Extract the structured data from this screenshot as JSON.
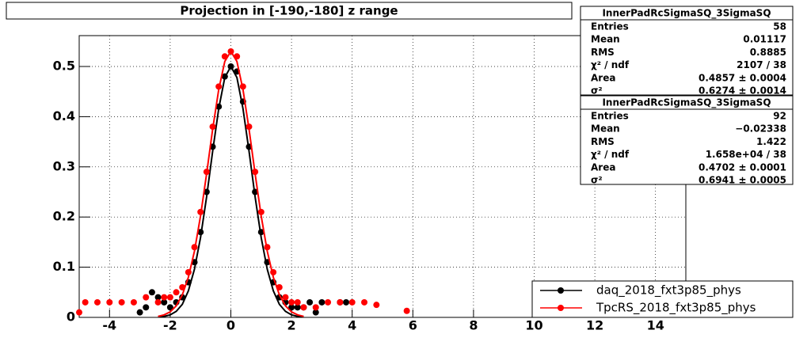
{
  "chart_data": {
    "type": "scatter",
    "title": "Projection in [-190,-180] z range",
    "xlim": [
      -5,
      15
    ],
    "ylim": [
      0,
      0.5615
    ],
    "xticks": [
      -4,
      -2,
      0,
      2,
      4,
      6,
      8,
      10,
      12,
      14
    ],
    "yticks": [
      0,
      0.1,
      0.2,
      0.3,
      0.4,
      0.5
    ],
    "grid": true,
    "series": [
      {
        "name": "daq_2018_fxt3p85_phys",
        "color": "#000000",
        "x": [
          -3.0,
          -2.8,
          -2.6,
          -2.4,
          -2.2,
          -2.0,
          -1.8,
          -1.6,
          -1.4,
          -1.2,
          -1.0,
          -0.8,
          -0.6,
          -0.4,
          -0.2,
          0,
          0.2,
          0.4,
          0.6,
          0.8,
          1.0,
          1.2,
          1.4,
          1.6,
          1.8,
          2.0,
          2.2,
          2.4,
          2.6,
          2.8,
          3.0,
          3.6,
          3.8
        ],
        "values": [
          0.01,
          0.02,
          0.05,
          0.04,
          0.03,
          0.02,
          0.03,
          0.04,
          0.07,
          0.11,
          0.17,
          0.25,
          0.34,
          0.42,
          0.48,
          0.5,
          0.49,
          0.43,
          0.34,
          0.25,
          0.17,
          0.11,
          0.07,
          0.04,
          0.03,
          0.02,
          0.02,
          0.02,
          0.03,
          0.01,
          0.03,
          0.03,
          0.03
        ],
        "fit_x": [
          -2.4,
          -2.2,
          -2.0,
          -1.8,
          -1.6,
          -1.4,
          -1.2,
          -1.0,
          -0.8,
          -0.6,
          -0.4,
          -0.2,
          0,
          0.2,
          0.4,
          0.6,
          0.8,
          1.0,
          1.2,
          1.4,
          1.6,
          1.8,
          2.0,
          2.2,
          2.4
        ],
        "fit_values": [
          0.001,
          0.002,
          0.005,
          0.012,
          0.026,
          0.053,
          0.096,
          0.159,
          0.24,
          0.331,
          0.416,
          0.478,
          0.5,
          0.478,
          0.416,
          0.331,
          0.24,
          0.159,
          0.096,
          0.053,
          0.026,
          0.012,
          0.005,
          0.002,
          0.001
        ]
      },
      {
        "name": "TpcRS_2018_fxt3p85_phys",
        "color": "#ff0000",
        "x": [
          -5.0,
          -4.8,
          -4.4,
          -4.0,
          -3.6,
          -3.2,
          -2.8,
          -2.4,
          -2.2,
          -2.0,
          -1.8,
          -1.6,
          -1.4,
          -1.2,
          -1.0,
          -0.8,
          -0.6,
          -0.4,
          -0.2,
          0,
          0.2,
          0.4,
          0.6,
          0.8,
          1.0,
          1.2,
          1.4,
          1.6,
          1.8,
          2.0,
          2.2,
          2.4,
          2.8,
          3.2,
          3.6,
          4.0,
          4.4,
          4.8,
          5.8
        ],
        "values": [
          0.01,
          0.03,
          0.03,
          0.03,
          0.03,
          0.03,
          0.04,
          0.03,
          0.04,
          0.04,
          0.05,
          0.06,
          0.09,
          0.14,
          0.21,
          0.29,
          0.38,
          0.46,
          0.52,
          0.53,
          0.52,
          0.46,
          0.38,
          0.29,
          0.21,
          0.14,
          0.09,
          0.06,
          0.04,
          0.03,
          0.03,
          0.02,
          0.02,
          0.03,
          0.03,
          0.03,
          0.03,
          0.025,
          0.013
        ],
        "fit_x": [
          -2.4,
          -2.2,
          -2.0,
          -1.8,
          -1.6,
          -1.4,
          -1.2,
          -1.0,
          -0.8,
          -0.6,
          -0.4,
          -0.2,
          0,
          0.2,
          0.4,
          0.6,
          0.8,
          1.0,
          1.2,
          1.4,
          1.6,
          1.8,
          2.0,
          2.2,
          2.4
        ],
        "fit_values": [
          0.002,
          0.005,
          0.011,
          0.023,
          0.045,
          0.08,
          0.132,
          0.202,
          0.286,
          0.375,
          0.454,
          0.51,
          0.53,
          0.51,
          0.454,
          0.375,
          0.286,
          0.202,
          0.132,
          0.08,
          0.045,
          0.023,
          0.011,
          0.005,
          0.002
        ]
      }
    ],
    "stats": [
      {
        "title": "InnerPadRcSigmaSQ_3SigmaSQ",
        "rows": [
          [
            "Entries",
            "58"
          ],
          [
            "Mean",
            "0.01117"
          ],
          [
            "RMS",
            "0.8885"
          ],
          [
            "χ² / ndf",
            "2107 / 38"
          ],
          [
            "Area",
            "0.4857 ± 0.0004"
          ],
          [
            "σ²",
            "0.6274 ± 0.0014"
          ]
        ]
      },
      {
        "title": "InnerPadRcSigmaSQ_3SigmaSQ",
        "rows": [
          [
            "Entries",
            "92"
          ],
          [
            "Mean",
            "−0.02338"
          ],
          [
            "RMS",
            "1.422"
          ],
          [
            "χ² / ndf",
            "1.658e+04 / 38"
          ],
          [
            "Area",
            "0.4702 ± 0.0001"
          ],
          [
            "σ²",
            "0.6941 ± 0.0005"
          ]
        ]
      }
    ]
  }
}
